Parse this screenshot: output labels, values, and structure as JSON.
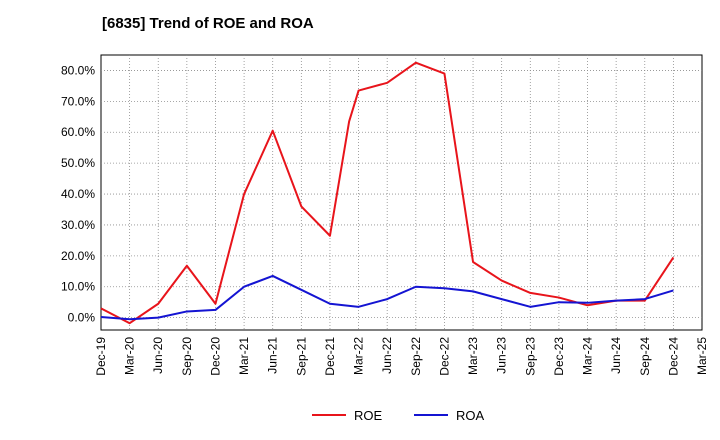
{
  "chart_data": {
    "type": "line",
    "title": "[6835]  Trend of ROE and ROA",
    "xlabel": "",
    "ylabel": "",
    "x_ticks": [
      "Dec-19",
      "Mar-20",
      "Jun-20",
      "Sep-20",
      "Dec-20",
      "Mar-21",
      "Jun-21",
      "Sep-21",
      "Dec-21",
      "Mar-22",
      "Jun-22",
      "Sep-22",
      "Dec-22",
      "Mar-23",
      "Jun-23",
      "Sep-23",
      "Dec-23",
      "Mar-24",
      "Jun-24",
      "Sep-24",
      "Dec-24",
      "Mar-25"
    ],
    "y_ticks": [
      "0.0%",
      "10.0%",
      "20.0%",
      "30.0%",
      "40.0%",
      "50.0%",
      "60.0%",
      "70.0%",
      "80.0%"
    ],
    "ylim": [
      -4,
      85
    ],
    "grid": true,
    "legend_position": "bottom-center",
    "series": [
      {
        "name": "ROE",
        "color": "#e8141b",
        "x": [
          "Dec-19",
          "Mar-20",
          "Jun-20",
          "Sep-20",
          "Dec-20",
          "Mar-21",
          "Jun-21",
          "Sep-21",
          "Dec-21",
          "Feb-22",
          "Mar-22",
          "Jun-22",
          "Sep-22",
          "Dec-22",
          "Mar-23",
          "Jun-23",
          "Sep-23",
          "Dec-23",
          "Mar-24",
          "Jun-24",
          "Sep-24",
          "Dec-24"
        ],
        "xi": [
          0,
          1,
          2,
          3,
          4,
          5,
          6,
          7,
          8,
          8.67,
          9,
          10,
          11,
          12,
          13,
          14,
          15,
          16,
          17,
          18,
          19,
          20
        ],
        "values": [
          3.0,
          -1.8,
          4.5,
          16.8,
          4.5,
          40.0,
          60.5,
          36.0,
          26.5,
          63.5,
          73.5,
          76.0,
          82.5,
          79.0,
          18.0,
          12.0,
          8.0,
          6.5,
          4.0,
          5.5,
          5.5,
          19.5
        ]
      },
      {
        "name": "ROA",
        "color": "#1414d2",
        "x": [
          "Dec-19",
          "Mar-20",
          "Jun-20",
          "Sep-20",
          "Dec-20",
          "Mar-21",
          "Jun-21",
          "Sep-21",
          "Dec-21",
          "Mar-22",
          "Jun-22",
          "Sep-22",
          "Dec-22",
          "Mar-23",
          "Jun-23",
          "Sep-23",
          "Dec-23",
          "Mar-24",
          "Jun-24",
          "Sep-24",
          "Dec-24"
        ],
        "xi": [
          0,
          1,
          2,
          3,
          4,
          5,
          6,
          7,
          8,
          9,
          10,
          11,
          12,
          13,
          14,
          15,
          16,
          17,
          18,
          19,
          20
        ],
        "values": [
          0.2,
          -0.5,
          0.0,
          2.0,
          2.5,
          10.0,
          13.5,
          9.0,
          4.5,
          3.5,
          6.0,
          10.0,
          9.5,
          8.5,
          6.0,
          3.5,
          5.0,
          4.8,
          5.5,
          6.0,
          8.8
        ]
      }
    ]
  }
}
